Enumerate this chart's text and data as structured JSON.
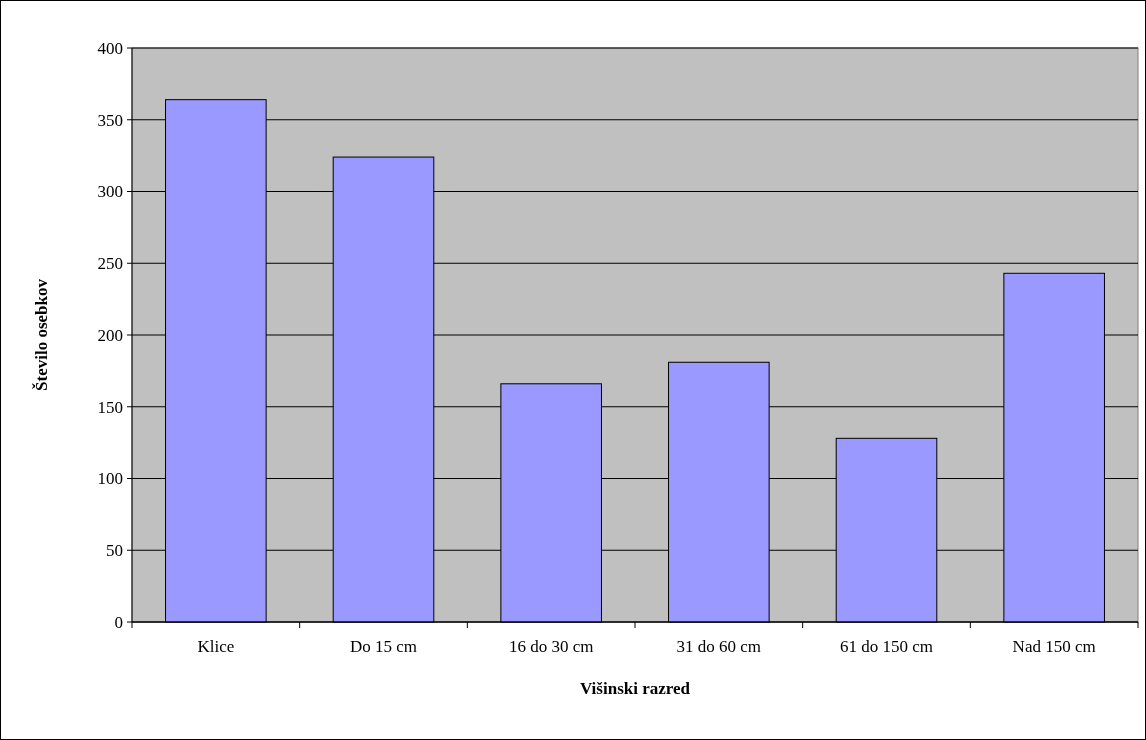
{
  "chart_data": {
    "type": "bar",
    "xlabel": "Višinski razred",
    "ylabel": "Število osebkov",
    "categories": [
      "Klice",
      "Do 15 cm",
      "16 do 30 cm",
      "31 do 60 cm",
      "61 do 150 cm",
      "Nad 150 cm"
    ],
    "values": [
      364,
      324,
      166,
      181,
      128,
      243
    ],
    "color": "#9999ff",
    "ylim": [
      0,
      400
    ],
    "yticks": [
      0,
      50,
      100,
      150,
      200,
      250,
      300,
      350,
      400
    ],
    "grid": "y"
  }
}
